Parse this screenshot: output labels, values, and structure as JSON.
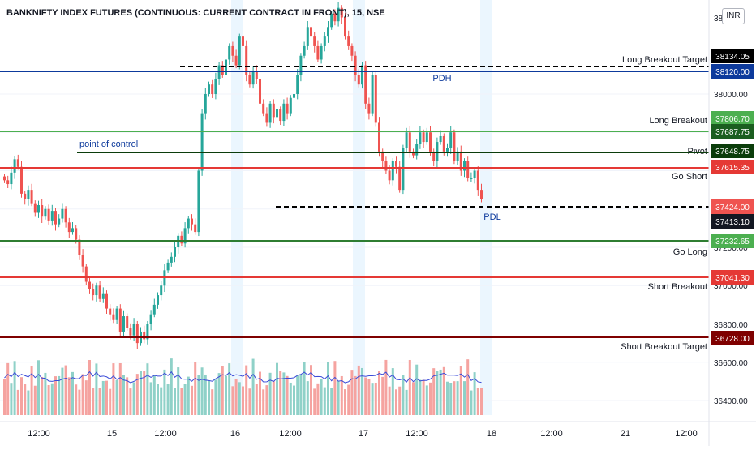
{
  "title": "BANKNIFTY INDEX FUTURES (CONTINUOUS: CURRENT CONTRACT IN FRONT), 15, NSE",
  "currency": "INR",
  "price_axis": {
    "ticks": [
      "38",
      "38000.00",
      "37800.00",
      "37600.00",
      "37400.00",
      "37200.00",
      "37000.00",
      "36800.00",
      "36600.00",
      "36400.00"
    ]
  },
  "time_axis": {
    "ticks": [
      "12:00",
      "15",
      "12:00",
      "16",
      "12:00",
      "17",
      "12:00",
      "18",
      "12:00",
      "21",
      "12:00"
    ]
  },
  "levels": [
    {
      "key": "lbt",
      "label": "Long Breakout Target",
      "price": "38134.05",
      "color": "#000000",
      "badge_bg": "#000000",
      "style": "dashed"
    },
    {
      "key": "pdh",
      "label": "PDH",
      "price": "38120.00",
      "color": "#0d3a9c",
      "badge_bg": "#0d3a9c",
      "style": "solid"
    },
    {
      "key": "lb",
      "label": "Long Breakout",
      "price": "37806.70",
      "color": "#4caf50",
      "badge_bg": "#4caf50",
      "style": "none"
    },
    {
      "key": "gl1",
      "label": "",
      "price": "37687.75",
      "color": "#4caf50",
      "badge_bg": "#1b5e20",
      "style": "solid"
    },
    {
      "key": "pivot",
      "label": "Pivot",
      "price": "37648.75",
      "color": "#0b3d0b",
      "badge_bg": "#0b3d0b",
      "style": "solid"
    },
    {
      "key": "gs",
      "label": "Go Short",
      "price": "37615.35",
      "color": "#e53935",
      "badge_bg": "#e53935",
      "style": "solid"
    },
    {
      "key": "pdl",
      "label": "PDL",
      "price": "37424.00",
      "color": "#000000",
      "badge_bg": "#ef5350",
      "style": "dashed"
    },
    {
      "key": "last",
      "label": "",
      "price": "37413.10",
      "color": "#000000",
      "badge_bg": "#131722",
      "style": "none"
    },
    {
      "key": "gol",
      "label": "Go Long",
      "price": "37232.65",
      "color": "#2e7d32",
      "badge_bg": "#4caf50",
      "style": "solid"
    },
    {
      "key": "sb",
      "label": "Short Breakout",
      "price": "37041.30",
      "color": "#e53935",
      "badge_bg": "#e53935",
      "style": "solid"
    },
    {
      "key": "sbt",
      "label": "Short Breakout Target",
      "price": "36728.00",
      "color": "#7f0000",
      "badge_bg": "#7f0000",
      "style": "solid"
    }
  ],
  "annotations": {
    "poc": "point of control"
  },
  "colors": {
    "up": "#26a69a",
    "down": "#ef5350",
    "volume_up": "#8fd1c8",
    "volume_down": "#f5a3a0",
    "volume_ma": "#3b4bd8",
    "session_band": "#e3f2fd"
  },
  "chart_data": {
    "type": "candlestick",
    "symbol": "BANKNIFTY INDEX FUTURES (CONTINUOUS: CURRENT CONTRACT IN FRONT)",
    "interval": "15",
    "exchange": "NSE",
    "closes": [
      37550,
      37530,
      37590,
      37660,
      37620,
      37480,
      37450,
      37500,
      37430,
      37380,
      37420,
      37360,
      37400,
      37340,
      37390,
      37320,
      37350,
      37400,
      37330,
      37280,
      37300,
      37240,
      37160,
      37100,
      37020,
      36980,
      36950,
      37000,
      36930,
      36960,
      36880,
      36850,
      36820,
      36880,
      36760,
      36840,
      36780,
      36740,
      36800,
      36700,
      36760,
      36720,
      36800,
      36850,
      36900,
      36950,
      37000,
      37080,
      37120,
      37150,
      37200,
      37260,
      37220,
      37300,
      37350,
      37320,
      37280,
      37600,
      37900,
      38000,
      38050,
      38000,
      38080,
      38150,
      38100,
      38180,
      38250,
      38200,
      38150,
      38300,
      38250,
      38100,
      38050,
      38120,
      38080,
      37950,
      37900,
      37850,
      37950,
      37880,
      37920,
      37860,
      37950,
      37900,
      37980,
      38000,
      38100,
      38200,
      38250,
      38350,
      38300,
      38250,
      38180,
      38250,
      38300,
      38350,
      38420,
      38380,
      38450,
      38400,
      38300,
      38250,
      38200,
      38100,
      38050,
      38150,
      37950,
      37900,
      38100,
      37850,
      37700,
      37650,
      37600,
      37550,
      37650,
      37620,
      37500,
      37720,
      37800,
      37700,
      37680,
      37740,
      37800,
      37750,
      37800,
      37700,
      37650,
      37750,
      37780,
      37700,
      37720,
      37800,
      37650,
      37700,
      37600,
      37650,
      37560,
      37560,
      37600,
      37500,
      37450
    ],
    "volume_max": 1.0
  }
}
